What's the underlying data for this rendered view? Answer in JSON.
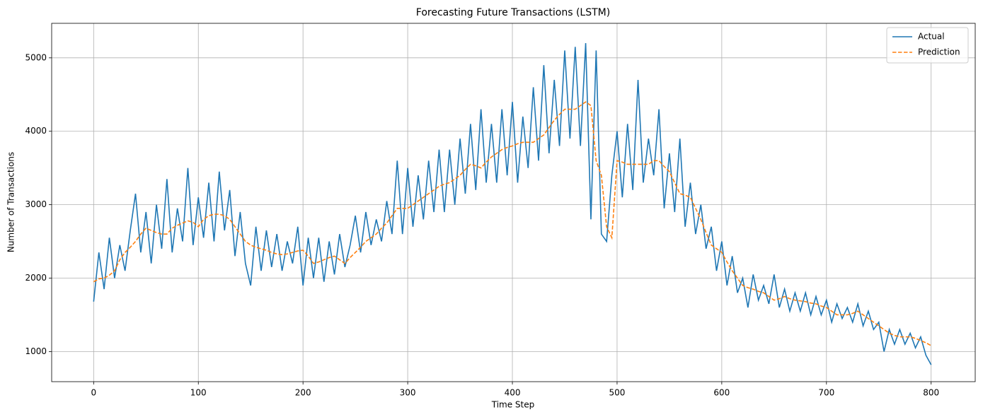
{
  "chart_data": {
    "type": "line",
    "title": "Forecasting Future Transactions (LSTM)",
    "x_label": "Time Step",
    "y_label": "Number of Transactions",
    "xlim": [
      -40.1,
      842.1
    ],
    "ylim": [
      590,
      5470
    ],
    "xticks": [
      0,
      100,
      200,
      300,
      400,
      500,
      600,
      700,
      800
    ],
    "yticks": [
      1000,
      2000,
      3000,
      4000,
      5000
    ],
    "grid": true,
    "legend": "upper right",
    "x": [
      0,
      5,
      10,
      15,
      20,
      25,
      30,
      35,
      40,
      45,
      50,
      55,
      60,
      65,
      70,
      75,
      80,
      85,
      90,
      95,
      100,
      105,
      110,
      115,
      120,
      125,
      130,
      135,
      140,
      145,
      150,
      155,
      160,
      165,
      170,
      175,
      180,
      185,
      190,
      195,
      200,
      205,
      210,
      215,
      220,
      225,
      230,
      235,
      240,
      245,
      250,
      255,
      260,
      265,
      270,
      275,
      280,
      285,
      290,
      295,
      300,
      305,
      310,
      315,
      320,
      325,
      330,
      335,
      340,
      345,
      350,
      355,
      360,
      365,
      370,
      375,
      380,
      385,
      390,
      395,
      400,
      405,
      410,
      415,
      420,
      425,
      430,
      435,
      440,
      445,
      450,
      455,
      460,
      465,
      470,
      475,
      480,
      485,
      490,
      495,
      500,
      505,
      510,
      515,
      520,
      525,
      530,
      535,
      540,
      545,
      550,
      555,
      560,
      565,
      570,
      575,
      580,
      585,
      590,
      595,
      600,
      605,
      610,
      615,
      620,
      625,
      630,
      635,
      640,
      645,
      650,
      655,
      660,
      665,
      670,
      675,
      680,
      685,
      690,
      695,
      700,
      705,
      710,
      715,
      720,
      725,
      730,
      735,
      740,
      745,
      750,
      755,
      760,
      765,
      770,
      775,
      780,
      785,
      790,
      795,
      800
    ],
    "series": [
      {
        "name": "Actual",
        "color": "#1f77b4",
        "dashed": false,
        "values": [
          1680,
          2350,
          1850,
          2550,
          2000,
          2450,
          2100,
          2650,
          3150,
          2350,
          2900,
          2200,
          3000,
          2400,
          3350,
          2350,
          2950,
          2500,
          3500,
          2450,
          3100,
          2550,
          3300,
          2500,
          3450,
          2650,
          3200,
          2300,
          2900,
          2200,
          1900,
          2700,
          2100,
          2650,
          2150,
          2600,
          2100,
          2500,
          2200,
          2700,
          1900,
          2550,
          2000,
          2550,
          1950,
          2500,
          2050,
          2600,
          2150,
          2450,
          2850,
          2350,
          2900,
          2450,
          2800,
          2500,
          3050,
          2600,
          3600,
          2600,
          3500,
          2700,
          3400,
          2800,
          3600,
          2900,
          3750,
          2900,
          3750,
          3000,
          3900,
          3150,
          4100,
          3200,
          4300,
          3300,
          4100,
          3300,
          4300,
          3400,
          4400,
          3300,
          4200,
          3500,
          4600,
          3600,
          4900,
          3700,
          4700,
          3800,
          5100,
          3900,
          5150,
          3800,
          5200,
          2800,
          5100,
          2600,
          2500,
          3400,
          4000,
          3100,
          4100,
          3200,
          4700,
          3300,
          3900,
          3400,
          4300,
          2950,
          3700,
          2900,
          3900,
          2700,
          3300,
          2600,
          3000,
          2400,
          2700,
          2100,
          2500,
          1900,
          2300,
          1800,
          2000,
          1600,
          2050,
          1700,
          1900,
          1650,
          2050,
          1600,
          1850,
          1550,
          1800,
          1550,
          1800,
          1500,
          1750,
          1500,
          1700,
          1400,
          1650,
          1450,
          1600,
          1400,
          1650,
          1350,
          1550,
          1300,
          1400,
          1000,
          1300,
          1100,
          1300,
          1100,
          1250,
          1050,
          1200,
          950,
          820
        ]
      },
      {
        "name": "Prediction",
        "color": "#ff7f0e",
        "dashed": true,
        "values": [
          1950,
          1990,
          2000,
          2040,
          2100,
          2250,
          2350,
          2420,
          2500,
          2600,
          2680,
          2650,
          2620,
          2600,
          2600,
          2680,
          2720,
          2750,
          2780,
          2760,
          2700,
          2800,
          2850,
          2870,
          2870,
          2850,
          2800,
          2700,
          2600,
          2500,
          2450,
          2420,
          2400,
          2380,
          2350,
          2330,
          2320,
          2330,
          2350,
          2370,
          2380,
          2300,
          2200,
          2220,
          2250,
          2280,
          2300,
          2250,
          2200,
          2280,
          2350,
          2420,
          2500,
          2550,
          2600,
          2680,
          2750,
          2850,
          2950,
          2950,
          2950,
          3000,
          3050,
          3100,
          3150,
          3200,
          3250,
          3280,
          3300,
          3350,
          3400,
          3480,
          3550,
          3530,
          3500,
          3580,
          3650,
          3700,
          3750,
          3780,
          3800,
          3830,
          3850,
          3850,
          3850,
          3900,
          3950,
          4050,
          4150,
          4230,
          4300,
          4300,
          4300,
          4350,
          4400,
          4350,
          3600,
          3400,
          2700,
          2550,
          3600,
          3580,
          3550,
          3550,
          3550,
          3550,
          3550,
          3600,
          3600,
          3520,
          3450,
          3300,
          3150,
          3130,
          3100,
          2950,
          2800,
          2620,
          2450,
          2400,
          2350,
          2220,
          2100,
          2000,
          1900,
          1870,
          1850,
          1820,
          1800,
          1750,
          1700,
          1720,
          1750,
          1720,
          1700,
          1690,
          1680,
          1660,
          1650,
          1620,
          1600,
          1550,
          1500,
          1500,
          1500,
          1520,
          1550,
          1500,
          1450,
          1400,
          1350,
          1300,
          1250,
          1220,
          1200,
          1200,
          1200,
          1180,
          1150,
          1120,
          1080
        ]
      }
    ]
  }
}
